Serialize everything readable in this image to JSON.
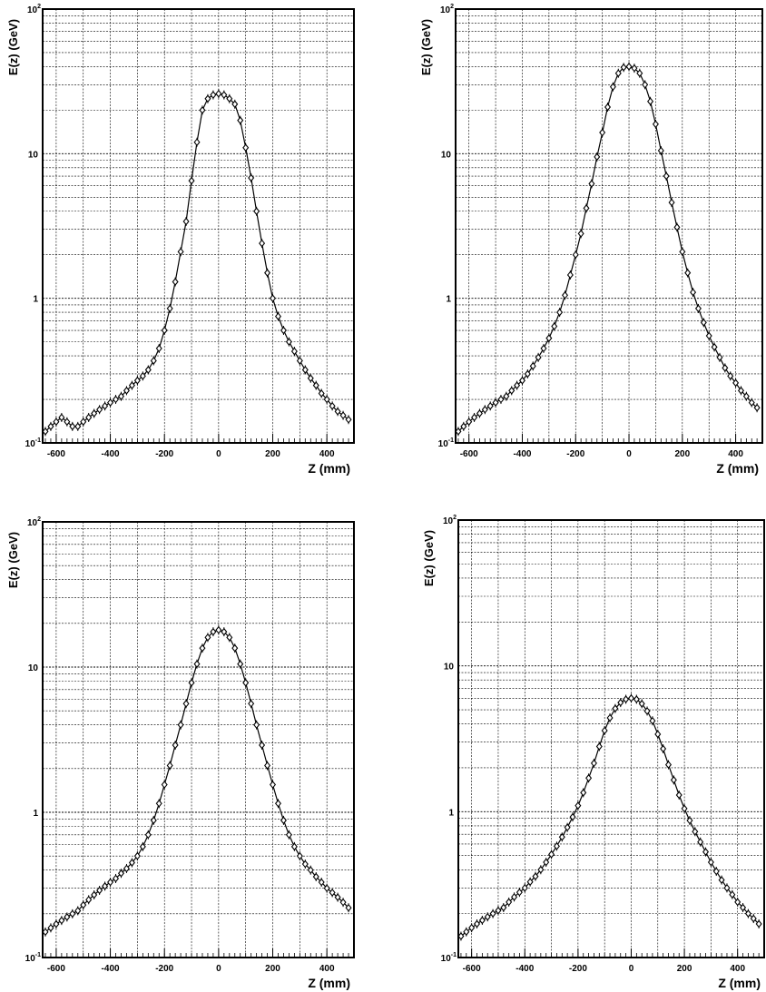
{
  "chart_data": [
    {
      "type": "scatter",
      "xlabel": "Z (mm)",
      "ylabel": "E(z)  (GeV)",
      "y_scale": "log",
      "xlim": [
        -650,
        500
      ],
      "ylim": [
        0.1,
        100
      ],
      "x_ticks": [
        "-600",
        "-400",
        "-200",
        "0",
        "200",
        "400"
      ],
      "y_ticks": [
        "10^-1",
        "1",
        "10",
        "10^2"
      ],
      "grid": true,
      "peak_energy": 26,
      "points": [
        [
          -640,
          0.12
        ],
        [
          -620,
          0.13
        ],
        [
          -600,
          0.14
        ],
        [
          -580,
          0.15
        ],
        [
          -560,
          0.14
        ],
        [
          -540,
          0.13
        ],
        [
          -520,
          0.13
        ],
        [
          -500,
          0.14
        ],
        [
          -480,
          0.15
        ],
        [
          -460,
          0.16
        ],
        [
          -440,
          0.17
        ],
        [
          -420,
          0.18
        ],
        [
          -400,
          0.19
        ],
        [
          -380,
          0.2
        ],
        [
          -360,
          0.21
        ],
        [
          -340,
          0.23
        ],
        [
          -320,
          0.25
        ],
        [
          -300,
          0.27
        ],
        [
          -280,
          0.29
        ],
        [
          -260,
          0.32
        ],
        [
          -240,
          0.37
        ],
        [
          -220,
          0.45
        ],
        [
          -200,
          0.6
        ],
        [
          -180,
          0.85
        ],
        [
          -160,
          1.3
        ],
        [
          -140,
          2.1
        ],
        [
          -120,
          3.4
        ],
        [
          -100,
          6.5
        ],
        [
          -80,
          12
        ],
        [
          -60,
          20
        ],
        [
          -40,
          24
        ],
        [
          -20,
          25.5
        ],
        [
          0,
          26
        ],
        [
          20,
          25.5
        ],
        [
          40,
          24
        ],
        [
          60,
          22
        ],
        [
          80,
          17
        ],
        [
          100,
          11
        ],
        [
          120,
          6.8
        ],
        [
          140,
          4
        ],
        [
          160,
          2.4
        ],
        [
          180,
          1.5
        ],
        [
          200,
          1.0
        ],
        [
          220,
          0.75
        ],
        [
          240,
          0.6
        ],
        [
          260,
          0.5
        ],
        [
          280,
          0.43
        ],
        [
          300,
          0.37
        ],
        [
          320,
          0.32
        ],
        [
          340,
          0.28
        ],
        [
          360,
          0.25
        ],
        [
          380,
          0.22
        ],
        [
          400,
          0.2
        ],
        [
          420,
          0.18
        ],
        [
          440,
          0.165
        ],
        [
          460,
          0.155
        ],
        [
          480,
          0.145
        ]
      ]
    },
    {
      "type": "scatter",
      "xlabel": "Z (mm)",
      "ylabel": "E(z)  (GeV)",
      "y_scale": "log",
      "xlim": [
        -650,
        500
      ],
      "ylim": [
        0.1,
        100
      ],
      "x_ticks": [
        "-600",
        "-400",
        "-200",
        "0",
        "200",
        "400"
      ],
      "y_ticks": [
        "10^-1",
        "1",
        "10",
        "10^2"
      ],
      "grid": true,
      "peak_energy": 40,
      "points": [
        [
          -640,
          0.12
        ],
        [
          -620,
          0.13
        ],
        [
          -600,
          0.14
        ],
        [
          -580,
          0.15
        ],
        [
          -560,
          0.16
        ],
        [
          -540,
          0.17
        ],
        [
          -520,
          0.18
        ],
        [
          -500,
          0.19
        ],
        [
          -480,
          0.2
        ],
        [
          -460,
          0.21
        ],
        [
          -440,
          0.23
        ],
        [
          -420,
          0.25
        ],
        [
          -400,
          0.27
        ],
        [
          -380,
          0.3
        ],
        [
          -360,
          0.34
        ],
        [
          -340,
          0.39
        ],
        [
          -320,
          0.45
        ],
        [
          -300,
          0.53
        ],
        [
          -280,
          0.64
        ],
        [
          -260,
          0.8
        ],
        [
          -240,
          1.05
        ],
        [
          -220,
          1.45
        ],
        [
          -200,
          2.0
        ],
        [
          -180,
          2.8
        ],
        [
          -160,
          4.2
        ],
        [
          -140,
          6.2
        ],
        [
          -120,
          9.5
        ],
        [
          -100,
          14
        ],
        [
          -80,
          21
        ],
        [
          -60,
          29
        ],
        [
          -40,
          36
        ],
        [
          -20,
          39.5
        ],
        [
          0,
          40
        ],
        [
          20,
          39
        ],
        [
          40,
          36
        ],
        [
          60,
          30
        ],
        [
          80,
          23
        ],
        [
          100,
          16
        ],
        [
          120,
          10.5
        ],
        [
          140,
          7
        ],
        [
          160,
          4.6
        ],
        [
          180,
          3.1
        ],
        [
          200,
          2.1
        ],
        [
          220,
          1.5
        ],
        [
          240,
          1.1
        ],
        [
          260,
          0.85
        ],
        [
          280,
          0.68
        ],
        [
          300,
          0.55
        ],
        [
          320,
          0.46
        ],
        [
          340,
          0.39
        ],
        [
          360,
          0.33
        ],
        [
          380,
          0.29
        ],
        [
          400,
          0.26
        ],
        [
          420,
          0.23
        ],
        [
          440,
          0.21
        ],
        [
          460,
          0.19
        ],
        [
          480,
          0.175
        ]
      ]
    },
    {
      "type": "scatter",
      "xlabel": "Z (mm)",
      "ylabel": "E(z)  (GeV)",
      "y_scale": "log",
      "xlim": [
        -650,
        500
      ],
      "ylim": [
        0.1,
        100
      ],
      "x_ticks": [
        "-600",
        "-400",
        "-200",
        "0",
        "200",
        "400"
      ],
      "y_ticks": [
        "10^-1",
        "1",
        "10",
        "10^2"
      ],
      "grid": true,
      "peak_energy": 18,
      "points": [
        [
          -640,
          0.15
        ],
        [
          -620,
          0.16
        ],
        [
          -600,
          0.17
        ],
        [
          -580,
          0.18
        ],
        [
          -560,
          0.19
        ],
        [
          -540,
          0.2
        ],
        [
          -520,
          0.21
        ],
        [
          -500,
          0.23
        ],
        [
          -480,
          0.25
        ],
        [
          -460,
          0.27
        ],
        [
          -440,
          0.29
        ],
        [
          -420,
          0.31
        ],
        [
          -400,
          0.33
        ],
        [
          -380,
          0.35
        ],
        [
          -360,
          0.38
        ],
        [
          -340,
          0.41
        ],
        [
          -320,
          0.45
        ],
        [
          -300,
          0.5
        ],
        [
          -280,
          0.58
        ],
        [
          -260,
          0.7
        ],
        [
          -240,
          0.88
        ],
        [
          -220,
          1.15
        ],
        [
          -200,
          1.55
        ],
        [
          -180,
          2.1
        ],
        [
          -160,
          2.9
        ],
        [
          -140,
          4.0
        ],
        [
          -120,
          5.6
        ],
        [
          -100,
          7.8
        ],
        [
          -80,
          10.5
        ],
        [
          -60,
          13.5
        ],
        [
          -40,
          16
        ],
        [
          -20,
          17.5
        ],
        [
          0,
          18
        ],
        [
          20,
          17.5
        ],
        [
          40,
          16
        ],
        [
          60,
          13.5
        ],
        [
          80,
          10.5
        ],
        [
          100,
          7.8
        ],
        [
          120,
          5.6
        ],
        [
          140,
          4.0
        ],
        [
          160,
          2.9
        ],
        [
          180,
          2.1
        ],
        [
          200,
          1.55
        ],
        [
          220,
          1.15
        ],
        [
          240,
          0.88
        ],
        [
          260,
          0.7
        ],
        [
          280,
          0.58
        ],
        [
          300,
          0.5
        ],
        [
          320,
          0.44
        ],
        [
          340,
          0.4
        ],
        [
          360,
          0.36
        ],
        [
          380,
          0.33
        ],
        [
          400,
          0.3
        ],
        [
          420,
          0.28
        ],
        [
          440,
          0.26
        ],
        [
          460,
          0.24
        ],
        [
          480,
          0.22
        ]
      ]
    },
    {
      "type": "scatter",
      "xlabel": "Z (mm)",
      "ylabel": "E(z)  (GeV)",
      "y_scale": "log",
      "xlim": [
        -650,
        500
      ],
      "ylim": [
        0.1,
        100
      ],
      "x_ticks": [
        "-600",
        "-400",
        "-200",
        "0",
        "200",
        "400"
      ],
      "y_ticks": [
        "10^-1",
        "1",
        "10",
        "10^2"
      ],
      "grid": true,
      "peak_energy": 6,
      "points": [
        [
          -640,
          0.14
        ],
        [
          -620,
          0.15
        ],
        [
          -600,
          0.16
        ],
        [
          -580,
          0.17
        ],
        [
          -560,
          0.18
        ],
        [
          -540,
          0.19
        ],
        [
          -520,
          0.2
        ],
        [
          -500,
          0.21
        ],
        [
          -480,
          0.22
        ],
        [
          -460,
          0.24
        ],
        [
          -440,
          0.26
        ],
        [
          -420,
          0.28
        ],
        [
          -400,
          0.3
        ],
        [
          -380,
          0.33
        ],
        [
          -360,
          0.36
        ],
        [
          -340,
          0.4
        ],
        [
          -320,
          0.45
        ],
        [
          -300,
          0.51
        ],
        [
          -280,
          0.58
        ],
        [
          -260,
          0.67
        ],
        [
          -240,
          0.78
        ],
        [
          -220,
          0.92
        ],
        [
          -200,
          1.1
        ],
        [
          -180,
          1.35
        ],
        [
          -160,
          1.7
        ],
        [
          -140,
          2.15
        ],
        [
          -120,
          2.8
        ],
        [
          -100,
          3.6
        ],
        [
          -80,
          4.4
        ],
        [
          -60,
          5.1
        ],
        [
          -40,
          5.6
        ],
        [
          -20,
          5.9
        ],
        [
          0,
          6.0
        ],
        [
          20,
          5.9
        ],
        [
          40,
          5.5
        ],
        [
          60,
          4.9
        ],
        [
          80,
          4.2
        ],
        [
          100,
          3.4
        ],
        [
          120,
          2.7
        ],
        [
          140,
          2.1
        ],
        [
          160,
          1.65
        ],
        [
          180,
          1.3
        ],
        [
          200,
          1.05
        ],
        [
          220,
          0.87
        ],
        [
          240,
          0.73
        ],
        [
          260,
          0.62
        ],
        [
          280,
          0.53
        ],
        [
          300,
          0.45
        ],
        [
          320,
          0.39
        ],
        [
          340,
          0.34
        ],
        [
          360,
          0.3
        ],
        [
          380,
          0.27
        ],
        [
          400,
          0.24
        ],
        [
          420,
          0.22
        ],
        [
          440,
          0.2
        ],
        [
          460,
          0.185
        ],
        [
          480,
          0.17
        ]
      ]
    }
  ]
}
